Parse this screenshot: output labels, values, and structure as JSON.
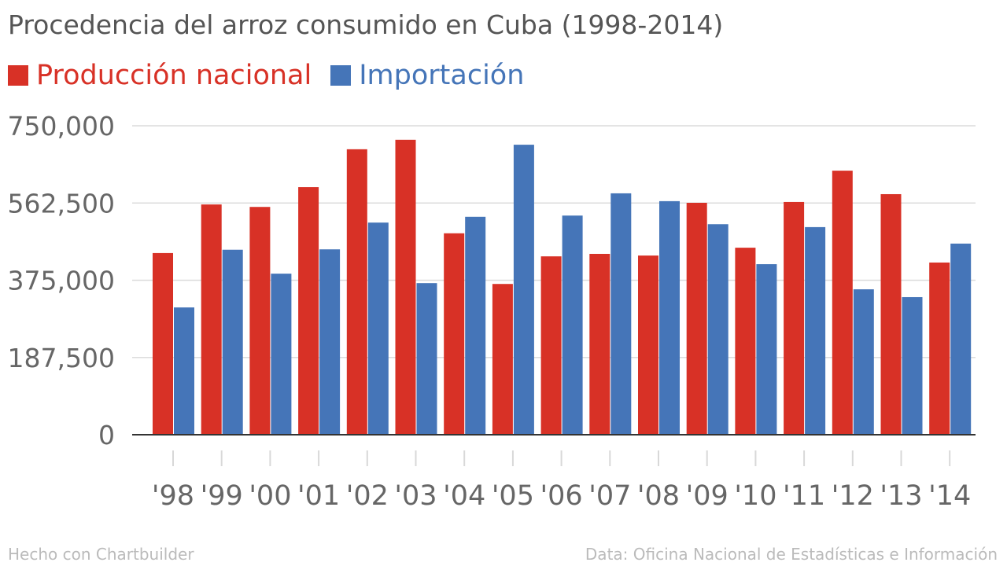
{
  "chart_data": {
    "type": "bar",
    "title": "Procedencia del arroz consumido en Cuba (1998-2014)",
    "categories": [
      "'98",
      "'99",
      "'00",
      "'01",
      "'02",
      "'03",
      "'04",
      "'05",
      "'06",
      "'07",
      "'08",
      "'09",
      "'10",
      "'11",
      "'12",
      "'13",
      "'14"
    ],
    "series": [
      {
        "name": "Producción nacional",
        "color": "#d83126",
        "values": [
          441000,
          559000,
          553000,
          601000,
          693000,
          716000,
          489000,
          366000,
          433000,
          439000,
          435000,
          563000,
          454000,
          565000,
          641000,
          584000,
          418000
        ]
      },
      {
        "name": "Importación",
        "color": "#4575b8",
        "values": [
          309000,
          449000,
          391000,
          450000,
          515000,
          368000,
          529000,
          704000,
          532000,
          586000,
          567000,
          511000,
          414000,
          504000,
          353000,
          334000,
          464000
        ]
      }
    ],
    "ylim": [
      0,
      750000
    ],
    "yticks": [
      0,
      187500,
      375000,
      562500,
      750000
    ],
    "ytick_labels": [
      "0",
      "187,500",
      "375,000",
      "562,500",
      "750,000"
    ],
    "grid": true,
    "legend_position": "top-left"
  },
  "footer": {
    "left": "Hecho con Chartbuilder",
    "right": "Data: Oficina Nacional de Estadísticas e Información"
  }
}
